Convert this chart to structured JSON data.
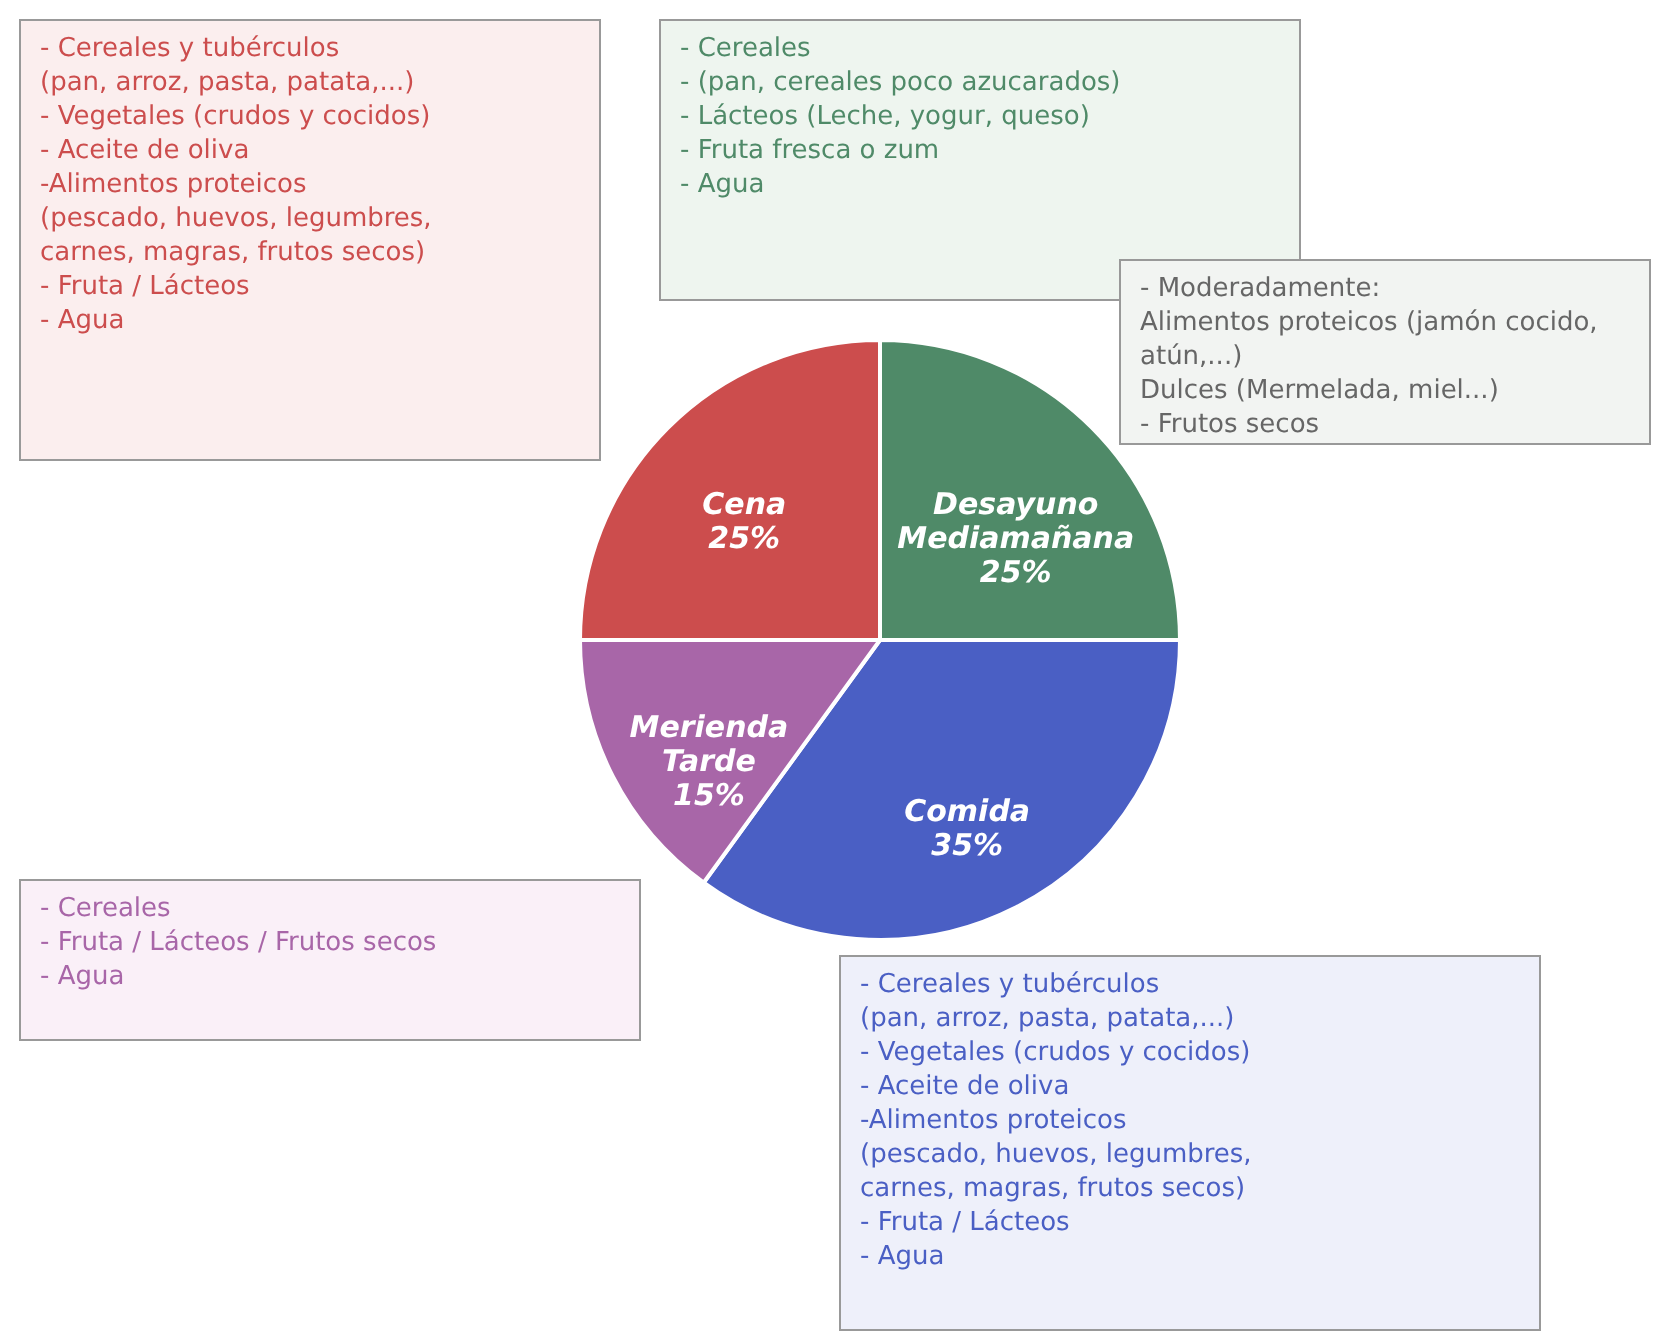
{
  "chart_data": {
    "type": "pie",
    "categories": [
      "Desayuno Mediamañana",
      "Comida",
      "Merienda Tarde",
      "Cena"
    ],
    "values": [
      25,
      35,
      15,
      25
    ],
    "value_labels": [
      "25%",
      "35%",
      "15%",
      "25%"
    ],
    "colors": [
      "#4f8a68",
      "#4a5fc4",
      "#a866a8",
      "#cc4d4d"
    ],
    "annotations": [
      "- Cereales y tubérculos\n  (pan, arroz, pasta, patata,...)\n- Vegetales (crudos y cocidos)\n- Aceite de oliva\n-Alimentos proteicos\n  (pescado, huevos, legumbres,\n  carnes, magras, frutos secos)\n- Fruta / Lácteos\n- Agua",
      "- Cereales\n- (pan, cereales poco azucarados)\n- Lácteos (Leche, yogur, queso)\n- Fruta fresca o zum\n- Agua",
      "- Moderadamente:\n  Alimentos proteicos (jamón cocido,\n  atún,...)\n  Dulces (Mermelada, miel...)\n- Frutos secos",
      "- Cereales\n- Fruta / Lácteos / Frutos secos\n- Agua",
      "- Cereales y tubérculos\n  (pan, arroz, pasta, patata,...)\n- Vegetales (crudos y cocidos)\n- Aceite de oliva\n-Alimentos proteicos\n  (pescado, huevos, legumbres,\n  carnes, magras, frutos secos)\n- Fruta / Lácteos\n- Agua"
    ]
  }
}
